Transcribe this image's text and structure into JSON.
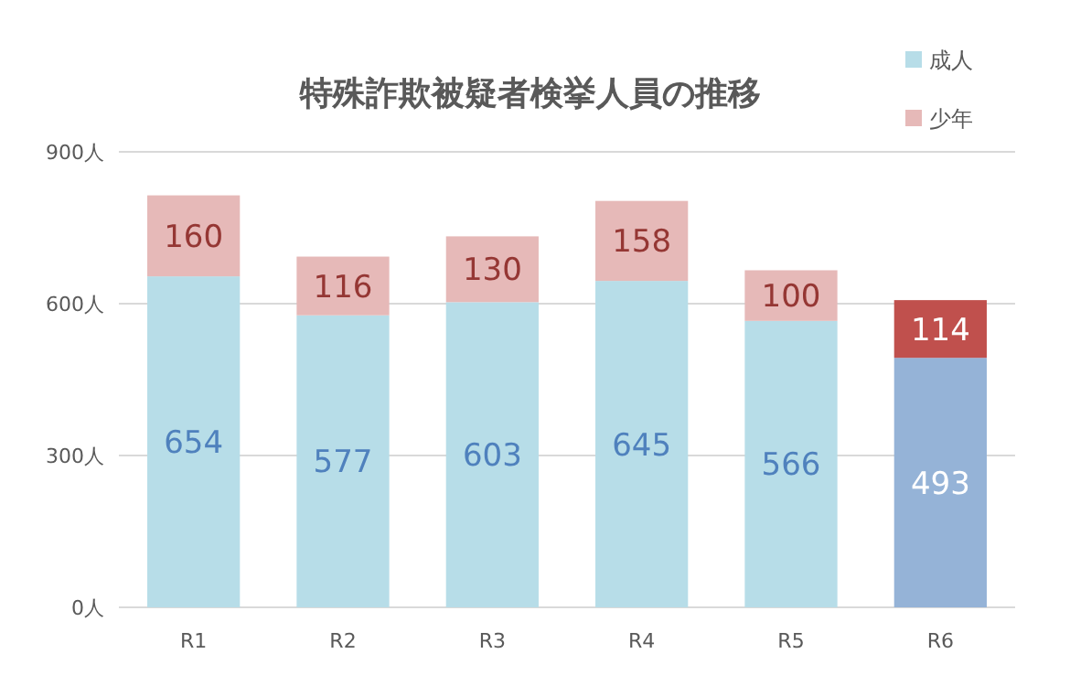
{
  "chart_data": {
    "type": "bar",
    "title": "特殊詐欺被疑者検挙人員の推移",
    "categories": [
      "R1",
      "R2",
      "R3",
      "R4",
      "R5",
      "R6"
    ],
    "stacked": true,
    "series": [
      {
        "name": "成人",
        "color": "#b7dde8",
        "colors": [
          "#b7dde8",
          "#b7dde8",
          "#b7dde8",
          "#b7dde8",
          "#b7dde8",
          "#95b3d7"
        ],
        "values": [
          654,
          577,
          603,
          645,
          566,
          493
        ]
      },
      {
        "name": "少年",
        "color": "#e6b9b8",
        "colors": [
          "#e6b9b8",
          "#e6b9b8",
          "#e6b9b8",
          "#e6b9b8",
          "#e6b9b8",
          "#c0504d"
        ],
        "values": [
          160,
          116,
          130,
          158,
          100,
          114
        ]
      }
    ],
    "ylim": [
      0,
      900
    ],
    "yticks": [
      {
        "value": 0,
        "label": "0人"
      },
      {
        "value": 300,
        "label": "300人"
      },
      {
        "value": 600,
        "label": "600人"
      },
      {
        "value": 900,
        "label": "900人"
      }
    ],
    "grid": "y",
    "legend": "top right",
    "data_labels": true
  }
}
